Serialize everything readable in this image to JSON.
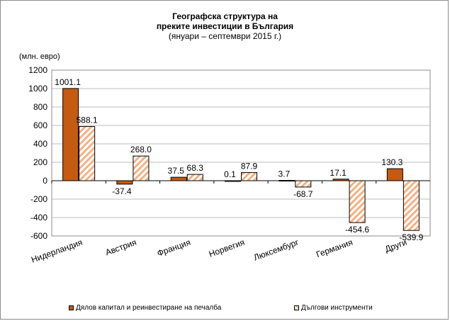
{
  "title": {
    "line1": "Географска структура на",
    "line2": "преките инвестиции в България",
    "line3": "(януари – септември 2015 г.)"
  },
  "units_label": "(млн. евро)",
  "colors": {
    "equity": "#c55a11",
    "debt_stripe": "#f4b183",
    "border": "#000000",
    "grid": "#a6a6a6"
  },
  "chart_data": {
    "type": "bar",
    "title": "Географска структура на преките инвестиции в България (януари – септември 2015 г.)",
    "ylabel": "(млн. евро)",
    "xlabel": "",
    "ylim": [
      -600,
      1200
    ],
    "yticks": [
      1200,
      1000,
      800,
      600,
      400,
      200,
      0,
      -200,
      -400,
      -600
    ],
    "grid": true,
    "legend_position": "bottom",
    "categories": [
      "Нидерландия",
      "Австрия",
      "Франция",
      "Норвегия",
      "Люксембург",
      "Германия",
      "Други"
    ],
    "series": [
      {
        "name": "Дялов капитал и реинвестиране на печалба",
        "values": [
          1001.1,
          -37.4,
          37.5,
          0.1,
          3.7,
          17.1,
          130.3
        ],
        "labels": [
          "1001.1",
          "-37.4",
          "37.5",
          "0.1",
          "3.7",
          "17.1",
          "130.3"
        ]
      },
      {
        "name": "Дългови инструменти",
        "values": [
          588.1,
          268.0,
          68.3,
          87.9,
          -68.7,
          -454.6,
          -539.9
        ],
        "labels": [
          "588.1",
          "268.0",
          "68.3",
          "87.9",
          "-68.7",
          "-454.6",
          "-539.9"
        ]
      }
    ]
  }
}
